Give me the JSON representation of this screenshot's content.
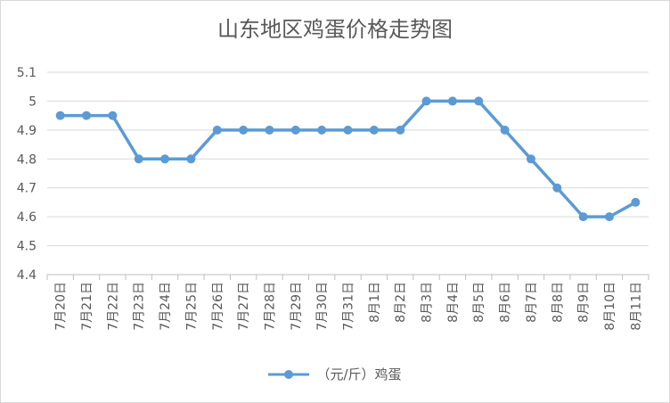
{
  "chart_data": {
    "type": "line",
    "title": "山东地区鸡蛋价格走势图",
    "categories": [
      "7月20日",
      "7月21日",
      "7月22日",
      "7月23日",
      "7月24日",
      "7月25日",
      "7月26日",
      "7月27日",
      "7月28日",
      "7月29日",
      "7月30日",
      "7月31日",
      "8月1日",
      "8月2日",
      "8月3日",
      "8月4日",
      "8月5日",
      "8月6日",
      "8月7日",
      "8月8日",
      "8月9日",
      "8月10日",
      "8月11日"
    ],
    "series": [
      {
        "name": "（元/斤）鸡蛋",
        "color": "#5b9bd5",
        "values": [
          4.95,
          4.95,
          4.95,
          4.8,
          4.8,
          4.8,
          4.9,
          4.9,
          4.9,
          4.9,
          4.9,
          4.9,
          4.9,
          4.9,
          5.0,
          5.0,
          5.0,
          4.9,
          4.8,
          4.7,
          4.6,
          4.6,
          4.65
        ]
      }
    ],
    "y_ticks": [
      "4.4",
      "4.5",
      "4.6",
      "4.7",
      "4.8",
      "4.9",
      "5",
      "5.1"
    ],
    "ylim": [
      4.4,
      5.1
    ],
    "grid": true,
    "legend_position": "bottom"
  },
  "colors": {
    "line": "#5b9bd5",
    "grid": "#d9d9d9",
    "text": "#595959"
  }
}
